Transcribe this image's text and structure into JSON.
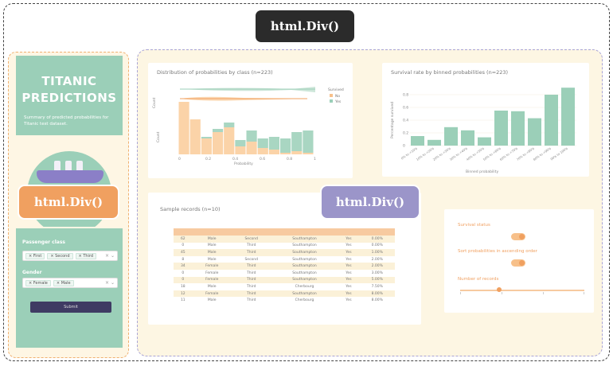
{
  "tags": {
    "top": "html.Div()",
    "sidebar": "html.Div()",
    "main": "html.Div()"
  },
  "sidebar": {
    "title_line1": "TITANIC",
    "title_line2": "PREDICTIONS",
    "subtitle": "Summary of predicted probabilities for Titanic test dataset.",
    "passenger_class_label": "Passenger class",
    "class_chips": [
      "First",
      "Second",
      "Third"
    ],
    "gender_label": "Gender",
    "gender_chips": [
      "Female",
      "Male"
    ],
    "clear_icon": "×",
    "arrow_icon": "⌄",
    "submit_label": "Submit"
  },
  "colors": {
    "teal": "#9bcfb8",
    "orange": "#f0a060",
    "purple": "#9b95c9",
    "peach": "#f7caa0",
    "cream": "#fdf6e3"
  },
  "hist_card": {
    "title": "Distribution of probabilities by class (n=223)",
    "legend_title": "Survived",
    "legend_no": "No",
    "legend_yes": "Yes",
    "ylabel_top": "Count",
    "ylabel_bottom": "Count",
    "xlabel": "Probability"
  },
  "bar_card": {
    "title": "Survival rate by binned probabilities (n=223)",
    "ylabel": "Percentage survived",
    "xlabel": "Binned probability"
  },
  "chart_data": [
    {
      "type": "bar",
      "title": "Distribution of probabilities by class (n=223)",
      "xlabel": "Probability",
      "ylabel": "Count",
      "x_ticks": [
        "0",
        "0.2",
        "0.4",
        "0.6",
        "0.8",
        "1"
      ],
      "legend": {
        "title": "Survived",
        "entries": [
          "No",
          "Yes"
        ],
        "placement": "right"
      },
      "series": [
        {
          "name": "No",
          "values": [
            33,
            22,
            10,
            14,
            17,
            5,
            8,
            4,
            3,
            1,
            2,
            1
          ]
        },
        {
          "name": "Yes",
          "values": [
            0,
            0,
            1,
            2,
            3,
            4,
            7,
            6,
            8,
            9,
            12,
            14
          ]
        }
      ]
    },
    {
      "type": "bar",
      "title": "Survival rate by binned probabilities (n=223)",
      "xlabel": "Binned probability",
      "ylabel": "Percentage survived",
      "y_ticks": [
        "0",
        "0.2",
        "0.4",
        "0.6",
        "0.8"
      ],
      "ylim": [
        0,
        1
      ],
      "categories": [
        "0% to <10%",
        "10% to <20%",
        "20% to <30%",
        "30% to <40%",
        "40% to <50%",
        "50% to <60%",
        "60% to <70%",
        "70% to <80%",
        "80% to <90%",
        "90% to 100%"
      ],
      "values": [
        0.15,
        0.09,
        0.29,
        0.24,
        0.13,
        0.55,
        0.54,
        0.43,
        0.8,
        0.91
      ]
    }
  ],
  "records": {
    "title": "Sample records (n=10)",
    "rows": [
      [
        "62",
        "Male",
        "Second",
        "Southampton",
        "Yes",
        "0.00%"
      ],
      [
        "0",
        "Male",
        "Third",
        "Southampton",
        "Yes",
        "0.00%"
      ],
      [
        "45",
        "Male",
        "Third",
        "Southampton",
        "Yes",
        "1.00%"
      ],
      [
        "8",
        "Male",
        "Second",
        "Southampton",
        "Yes",
        "2.00%"
      ],
      [
        "34",
        "Female",
        "Third",
        "Southampton",
        "Yes",
        "2.00%"
      ],
      [
        "0",
        "Female",
        "Third",
        "Southampton",
        "Yes",
        "3.00%"
      ],
      [
        "0",
        "Female",
        "Third",
        "Southampton",
        "Yes",
        "5.00%"
      ],
      [
        "18",
        "Male",
        "Third",
        "Cherbourg",
        "Yes",
        "7.50%"
      ],
      [
        "12",
        "Female",
        "Third",
        "Southampton",
        "Yes",
        "8.00%"
      ],
      [
        "11",
        "Male",
        "Third",
        "Cherbourg",
        "Yes",
        "8.00%"
      ]
    ]
  },
  "controls": {
    "survival_label": "Survival status",
    "sort_label": "Sort probabilities in ascending order",
    "records_label": "Number of records"
  }
}
